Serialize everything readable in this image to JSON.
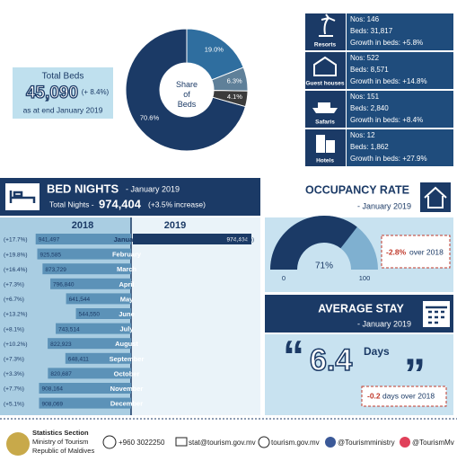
{
  "total_beds": {
    "label": "Total Beds",
    "value": "45,090",
    "change": "(+ 8.4%)",
    "note": "as at end January 2019"
  },
  "categories_info": [
    {
      "name": "Resorts",
      "nos": "Nos: 146",
      "beds": "Beds: 31,817",
      "growth": "Growth in beds: +5.8%"
    },
    {
      "name": "Guest houses",
      "nos": "Nos: 522",
      "beds": "Beds: 8,571",
      "growth": "Growth in beds: +14.8%"
    },
    {
      "name": "Safaris",
      "nos": "Nos: 151",
      "beds": "Beds: 2,840",
      "growth": "Growth in beds: +8.4%"
    },
    {
      "name": "Hotels",
      "nos": "Nos: 12",
      "beds": "Beds: 1,862",
      "growth": "Growth in beds: +27.9%"
    }
  ],
  "bed_nights": {
    "title": "BED NIGHTS",
    "period": "- January 2019",
    "total_label": "Total Nights -",
    "total": "974,404",
    "change": "(+3.5%",
    "change_suffix": "increase)"
  },
  "occupancy": {
    "title": "OCCUPANCY RATE",
    "period": "- January 2019",
    "change": "-2.8%",
    "change_suffix": "over 2018"
  },
  "average_stay": {
    "title": "AVERAGE STAY",
    "period": "- January 2019",
    "value": "6.4",
    "unit": "Days",
    "change": "-0.2",
    "change_suffix": "days over 2018"
  },
  "chart_data": [
    {
      "type": "pie",
      "center_label": "Share of Beds",
      "categories": [
        "Resorts",
        "Guest houses",
        "Safaris",
        "Hotels"
      ],
      "values": [
        70.6,
        19.0,
        6.3,
        4.1
      ],
      "value_labels": [
        "70.6%",
        "19.0%",
        "6.3%",
        "4.1%"
      ],
      "colors": [
        "#1b3a66",
        "#2f6e9f",
        "#5f8099",
        "#3b3b3b"
      ]
    },
    {
      "type": "bar",
      "categories": [
        "January",
        "February",
        "March",
        "April",
        "May",
        "June",
        "July",
        "August",
        "September",
        "October",
        "November",
        "December"
      ],
      "series": [
        {
          "name": "2018",
          "color": "#5c92b8",
          "values": [
            941497,
            925585,
            873729,
            796840,
            641544,
            544550,
            743514,
            822923,
            648411,
            820687,
            908164,
            908069
          ],
          "value_labels": [
            "941,497",
            "925,585",
            "873,729",
            "796,840",
            "641,544",
            "544,550",
            "743,514",
            "822,923",
            "648,411",
            "820,687",
            "908,164",
            "908,069"
          ],
          "changes": [
            "(+17.7%)",
            "(+19.8%)",
            "(+16.4%)",
            "(+7.3%)",
            "(+6.7%)",
            "(+13.2%)",
            "(+8.1%)",
            "(+10.2%)",
            "(+7.3%)",
            "(+3.3%)",
            "(+7.7%)",
            "(+5.1%)"
          ]
        },
        {
          "name": "2019",
          "color": "#1b3a66",
          "values": [
            974404,
            null,
            null,
            null,
            null,
            null,
            null,
            null,
            null,
            null,
            null,
            null
          ],
          "value_labels": [
            "974,404",
            null,
            null,
            null,
            null,
            null,
            null,
            null,
            null,
            null,
            null,
            null
          ],
          "changes": [
            "(+3.5%)",
            null,
            null,
            null,
            null,
            null,
            null,
            null,
            null,
            null,
            null,
            null
          ]
        }
      ]
    },
    {
      "type": "gauge",
      "value": 71,
      "value_label": "71%",
      "ylim": [
        0,
        100
      ],
      "yticks": [
        0,
        100
      ],
      "color": "#1b3a66",
      "track_color": "#7fb0d0"
    }
  ],
  "footer": {
    "org1": "Statistics Section",
    "org2": "Ministry of Tourism",
    "org3": "Republic of Maldives",
    "phone": "+960 3022250",
    "email": "stat@tourism.gov.mv",
    "web": "tourism.gov.mv",
    "facebook": "@Tourismministry",
    "twitter": "@TourismMv"
  }
}
